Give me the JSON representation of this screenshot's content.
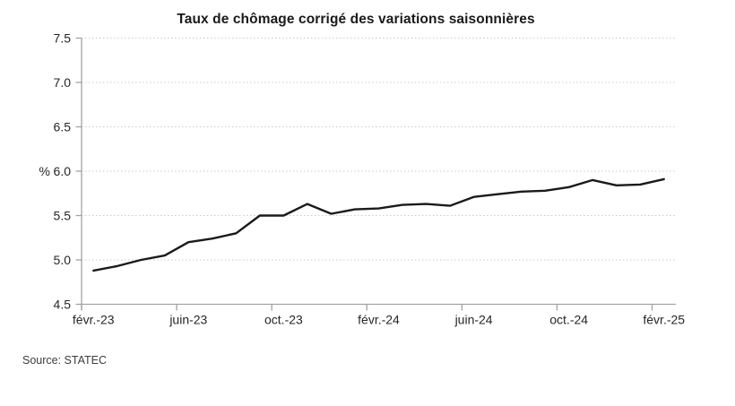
{
  "source": "Source: STATEC",
  "chart_data": {
    "type": "line",
    "title": "Taux de chômage corrigé des variations saisonnières",
    "series_name": "Taux de chômage corrigé des variations saisonnières",
    "x": [
      "févr.-23",
      "mars-23",
      "avr.-23",
      "mai-23",
      "juin-23",
      "juil.-23",
      "août-23",
      "sept.-23",
      "oct.-23",
      "nov.-23",
      "déc.-23",
      "janv.-24",
      "févr.-24",
      "mars-24",
      "avr.-24",
      "mai-24",
      "juin-24",
      "juil.-24",
      "août-24",
      "sept.-24",
      "oct.-24",
      "nov.-24",
      "déc.-24",
      "janv.-25",
      "févr.-25"
    ],
    "values": [
      4.88,
      4.93,
      5.0,
      5.05,
      5.2,
      5.24,
      5.3,
      5.5,
      5.5,
      5.63,
      5.52,
      5.57,
      5.58,
      5.62,
      5.63,
      5.61,
      5.71,
      5.74,
      5.77,
      5.78,
      5.82,
      5.9,
      5.84,
      5.85,
      5.91
    ],
    "xlabel": "",
    "ylabel": "%",
    "ylim": [
      4.5,
      7.5
    ],
    "ytick_step": 0.5,
    "ytick_labels": [
      "4.5",
      "5.0",
      "5.5",
      "6.0",
      "6.5",
      "7.0",
      "7.5"
    ],
    "xtick_labels": [
      "févr.-23",
      "juin-23",
      "oct.-23",
      "févr.-24",
      "juin-24",
      "oct.-24",
      "févr.-25"
    ],
    "xtick_every": 4,
    "grid": "horizontal-dotted",
    "legend_position": "none",
    "colors": {
      "line": "#1a1a1a",
      "grid": "#cbcbcb",
      "axis": "#a3a3a3",
      "tick_label": "#262626",
      "title": "#1a1a1a",
      "source": "#3d3d3d",
      "background": "#ffffff"
    }
  }
}
